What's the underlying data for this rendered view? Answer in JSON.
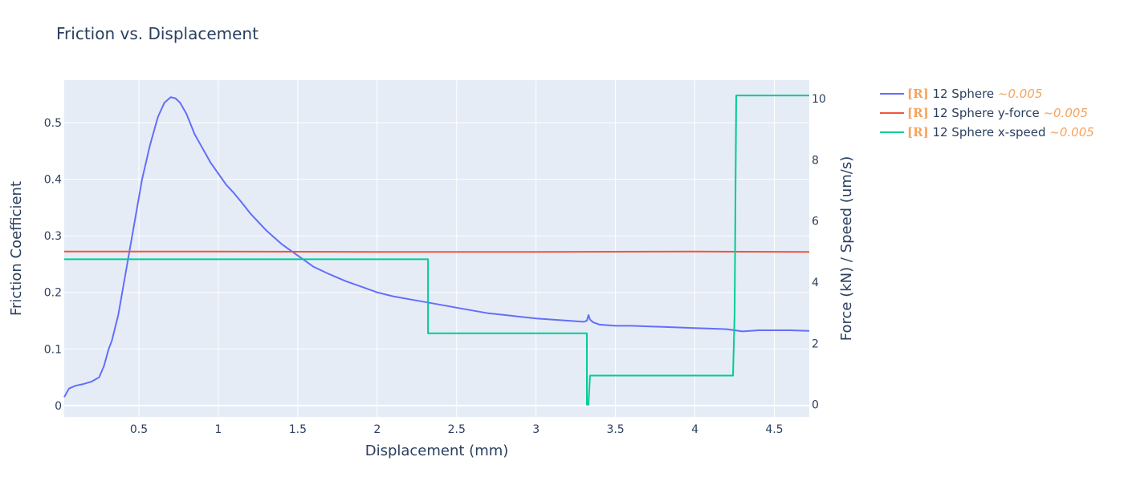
{
  "chart_data": {
    "type": "line",
    "title": "Friction vs. Displacement",
    "xlabel": "Displacement (mm)",
    "ylabel": "Friction Coefficient",
    "y2label": "Force (kN) / Speed (um/s)",
    "xlim": [
      0.03,
      4.72
    ],
    "ylim": [
      -0.02,
      0.575
    ],
    "y2lim": [
      -0.4,
      10.6
    ],
    "xticks": [
      "0.5",
      "1",
      "1.5",
      "2",
      "2.5",
      "3",
      "3.5",
      "4",
      "4.5"
    ],
    "yticks": [
      "0",
      "0.1",
      "0.2",
      "0.3",
      "0.4",
      "0.5"
    ],
    "y2ticks": [
      "0",
      "2",
      "4",
      "6",
      "8",
      "10"
    ],
    "grid": true,
    "legend_position": "outside-right-top",
    "series": [
      {
        "name": "12 Sphere",
        "tag": "[R]",
        "tolerance": "~0.005",
        "color": "#636efa",
        "axis": "y",
        "x": [
          0.03,
          0.06,
          0.1,
          0.15,
          0.2,
          0.25,
          0.28,
          0.31,
          0.33,
          0.37,
          0.42,
          0.47,
          0.52,
          0.57,
          0.62,
          0.66,
          0.7,
          0.73,
          0.76,
          0.8,
          0.85,
          0.9,
          0.95,
          1.0,
          1.05,
          1.1,
          1.15,
          1.2,
          1.3,
          1.4,
          1.5,
          1.6,
          1.7,
          1.8,
          1.9,
          2.0,
          2.1,
          2.2,
          2.3,
          2.4,
          2.5,
          2.6,
          2.7,
          2.8,
          2.9,
          3.0,
          3.1,
          3.2,
          3.3,
          3.32,
          3.33,
          3.34,
          3.36,
          3.4,
          3.5,
          3.6,
          3.7,
          3.8,
          3.9,
          4.0,
          4.1,
          4.2,
          4.25,
          4.3,
          4.4,
          4.5,
          4.6,
          4.72
        ],
        "y": [
          0.015,
          0.03,
          0.035,
          0.038,
          0.042,
          0.05,
          0.07,
          0.1,
          0.115,
          0.16,
          0.24,
          0.32,
          0.4,
          0.46,
          0.51,
          0.535,
          0.545,
          0.543,
          0.535,
          0.515,
          0.48,
          0.455,
          0.43,
          0.41,
          0.39,
          0.375,
          0.358,
          0.34,
          0.31,
          0.285,
          0.265,
          0.245,
          0.232,
          0.22,
          0.21,
          0.2,
          0.193,
          0.188,
          0.183,
          0.178,
          0.173,
          0.168,
          0.163,
          0.16,
          0.157,
          0.154,
          0.152,
          0.15,
          0.148,
          0.15,
          0.16,
          0.152,
          0.147,
          0.143,
          0.141,
          0.141,
          0.14,
          0.139,
          0.138,
          0.137,
          0.136,
          0.135,
          0.133,
          0.131,
          0.133,
          0.133,
          0.133,
          0.132
        ]
      },
      {
        "name": "12 Sphere y-force",
        "tag": "[R]",
        "tolerance": "~0.005",
        "color": "#ef553b",
        "axis": "y2",
        "x": [
          0.03,
          1.0,
          2.0,
          3.0,
          4.0,
          4.72
        ],
        "y": [
          5.0,
          5.0,
          4.99,
          4.99,
          5.0,
          4.99
        ]
      },
      {
        "name": "12 Sphere x-speed",
        "tag": "[R]",
        "tolerance": "~0.005",
        "color": "#00cc96",
        "axis": "y2",
        "x": [
          0.03,
          2.32,
          2.32,
          3.32,
          3.32,
          3.33,
          3.34,
          3.35,
          4.24,
          4.25,
          4.26,
          4.72
        ],
        "y": [
          4.75,
          4.75,
          2.33,
          2.33,
          0.0,
          0.0,
          0.95,
          0.95,
          0.95,
          3.0,
          10.1,
          10.1
        ]
      }
    ]
  }
}
